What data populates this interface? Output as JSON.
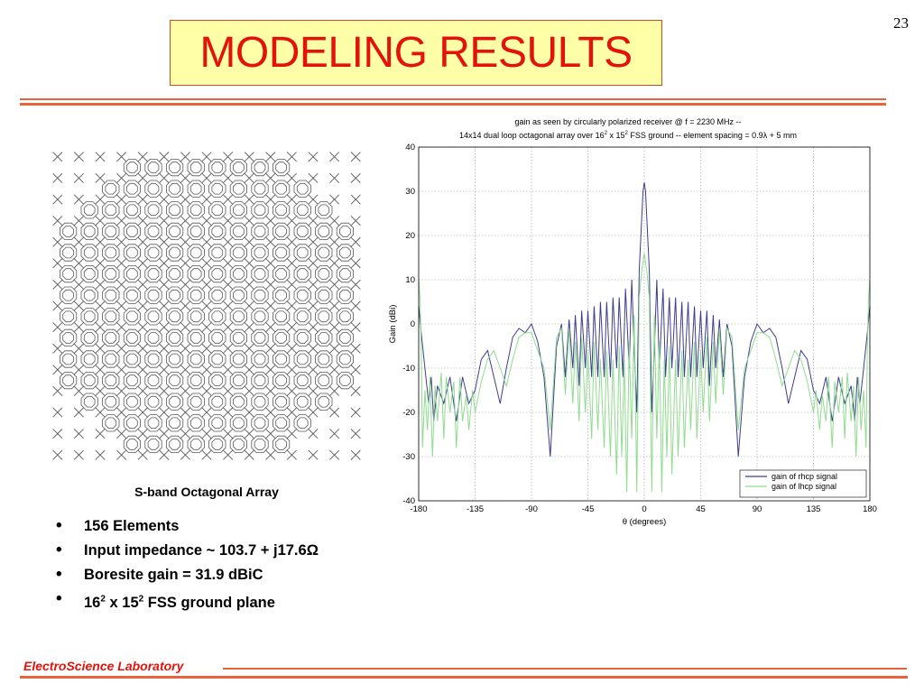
{
  "page_number": "23",
  "title": "MODELING RESULTS",
  "array": {
    "caption": "S-band Octagonal Array",
    "grid": 14,
    "ring_color": "#595959"
  },
  "bullets": [
    {
      "id": "elements",
      "text": "156 Elements"
    },
    {
      "id": "impedance",
      "text": "Input impedance ~ 103.7 + j17.6Ω"
    },
    {
      "id": "gain",
      "text": "Boresite gain =  31.9 dBiC"
    },
    {
      "id": "fss",
      "text": "16",
      "sup1": "2",
      "mid": " x 15",
      "sup2": "2",
      "tail": " FSS ground plane"
    }
  ],
  "footer": {
    "lab": "ElectroScience Laboratory"
  },
  "colors": {
    "accent": "#e3120b",
    "rule": "#e8623a",
    "title_bg": "#ffffa8"
  },
  "chart_data": {
    "type": "line",
    "title_line1": "gain as seen by circularly polarized receiver @ f = 2230 MHz --",
    "title_line2_pre": "14x14 dual loop octagonal array over 16",
    "title_line2_sup1": "2",
    "title_line2_mid": " x 15",
    "title_line2_sup2": "2",
    "title_line2_post": " FSS ground -- element spacing = 0.9λ + 5 mm",
    "xlabel": "θ (degrees)",
    "ylabel": "Gain (dBi)",
    "xlim": [
      -180,
      180
    ],
    "ylim": [
      -40,
      40
    ],
    "xticks": [
      -180,
      -135,
      -90,
      -45,
      0,
      45,
      90,
      135,
      180
    ],
    "yticks": [
      -40,
      -30,
      -20,
      -10,
      0,
      10,
      20,
      30,
      40
    ],
    "grid": true,
    "legend_position": "bottom-right",
    "series": [
      {
        "name": "gain of rhcp signal",
        "color": "#3d3d8f",
        "x": [
          -180,
          -178,
          -175,
          -172,
          -170,
          -168,
          -165,
          -160,
          -155,
          -150,
          -145,
          -140,
          -135,
          -130,
          -125,
          -120,
          -115,
          -110,
          -105,
          -100,
          -95,
          -90,
          -85,
          -80,
          -75,
          -70,
          -66,
          -63,
          -60,
          -57,
          -55,
          -52,
          -50,
          -47,
          -45,
          -42,
          -40,
          -37,
          -35,
          -32,
          -30,
          -27,
          -25,
          -22,
          -20,
          -17,
          -15,
          -12,
          -10,
          -8,
          -6,
          -4,
          -2,
          -1,
          0,
          1,
          2,
          4,
          6,
          8,
          10,
          12,
          15,
          17,
          20,
          22,
          25,
          27,
          30,
          32,
          35,
          37,
          40,
          42,
          45,
          47,
          50,
          52,
          55,
          57,
          60,
          63,
          66,
          70,
          75,
          80,
          85,
          90,
          95,
          100,
          105,
          110,
          115,
          120,
          125,
          130,
          135,
          140,
          145,
          150,
          155,
          160,
          165,
          168,
          170,
          172,
          175,
          178,
          180
        ],
        "y": [
          4,
          -2,
          -10,
          -18,
          -12,
          -22,
          -14,
          -18,
          -12,
          -22,
          -12,
          -18,
          -15,
          -8,
          -6,
          -12,
          -18,
          -10,
          -3,
          -1,
          -2,
          0,
          -4,
          -12,
          -30,
          -5,
          0,
          -12,
          1,
          -10,
          2,
          -14,
          3,
          -10,
          3,
          -12,
          4,
          -12,
          5,
          -12,
          5,
          -12,
          6,
          -10,
          6,
          -12,
          8,
          -10,
          10,
          -6,
          -20,
          12,
          24,
          30,
          32,
          30,
          24,
          12,
          -20,
          -6,
          10,
          -10,
          8,
          -12,
          6,
          -10,
          6,
          -12,
          5,
          -12,
          5,
          -12,
          4,
          -12,
          3,
          -10,
          3,
          -14,
          2,
          -10,
          1,
          -12,
          0,
          -5,
          -30,
          -12,
          -4,
          0,
          -2,
          -1,
          -3,
          -10,
          -18,
          -12,
          -6,
          -8,
          -15,
          -18,
          -12,
          -22,
          -12,
          -18,
          -14,
          -22,
          -12,
          -18,
          -10,
          -2,
          4
        ]
      },
      {
        "name": "gain of lhcp signal",
        "color": "#8fdc8f",
        "x": [
          -180,
          -179,
          -178,
          -177,
          -175,
          -173,
          -171,
          -169,
          -167,
          -165,
          -162,
          -160,
          -158,
          -155,
          -152,
          -150,
          -147,
          -145,
          -142,
          -140,
          -137,
          -135,
          -130,
          -125,
          -120,
          -115,
          -110,
          -105,
          -100,
          -95,
          -90,
          -85,
          -80,
          -75,
          -70,
          -66,
          -63,
          -60,
          -57,
          -55,
          -52,
          -50,
          -47,
          -45,
          -42,
          -40,
          -37,
          -35,
          -32,
          -30,
          -27,
          -25,
          -22,
          -20,
          -18,
          -16,
          -14,
          -12,
          -10,
          -8,
          -6,
          -4,
          -2,
          0,
          2,
          4,
          6,
          8,
          10,
          12,
          14,
          16,
          18,
          20,
          22,
          25,
          27,
          30,
          32,
          35,
          37,
          40,
          42,
          45,
          47,
          50,
          52,
          55,
          57,
          60,
          63,
          66,
          70,
          75,
          80,
          85,
          90,
          95,
          100,
          105,
          110,
          115,
          120,
          125,
          130,
          135,
          137,
          140,
          142,
          145,
          147,
          150,
          152,
          155,
          158,
          160,
          162,
          165,
          167,
          169,
          171,
          173,
          175,
          177,
          178,
          179,
          180
        ],
        "y": [
          10,
          6,
          -5,
          -28,
          -15,
          -24,
          -12,
          -30,
          -14,
          -22,
          -11,
          -26,
          -12,
          -20,
          -13,
          -28,
          -12,
          -22,
          -16,
          -24,
          -15,
          -20,
          -13,
          -8,
          -6,
          -10,
          -14,
          -8,
          -3,
          -2,
          -2,
          -6,
          -10,
          -24,
          -3,
          -1,
          -16,
          -1,
          -18,
          -4,
          -22,
          -3,
          -20,
          -6,
          -26,
          -4,
          -24,
          -8,
          -28,
          -6,
          -30,
          -8,
          -34,
          -5,
          -30,
          -8,
          -38,
          -4,
          -26,
          2,
          -38,
          6,
          12,
          16,
          12,
          6,
          -38,
          2,
          -26,
          -4,
          -38,
          -8,
          -30,
          -5,
          -34,
          -8,
          -30,
          -6,
          -28,
          -8,
          -24,
          -4,
          -26,
          -6,
          -20,
          -3,
          -22,
          -4,
          -18,
          -1,
          -16,
          -1,
          -3,
          -24,
          -10,
          -6,
          -2,
          -2,
          -3,
          -8,
          -14,
          -10,
          -6,
          -8,
          -13,
          -20,
          -15,
          -24,
          -16,
          -22,
          -12,
          -28,
          -13,
          -20,
          -12,
          -26,
          -11,
          -22,
          -14,
          -30,
          -12,
          -24,
          -15,
          -28,
          -5,
          6,
          10
        ]
      }
    ]
  }
}
